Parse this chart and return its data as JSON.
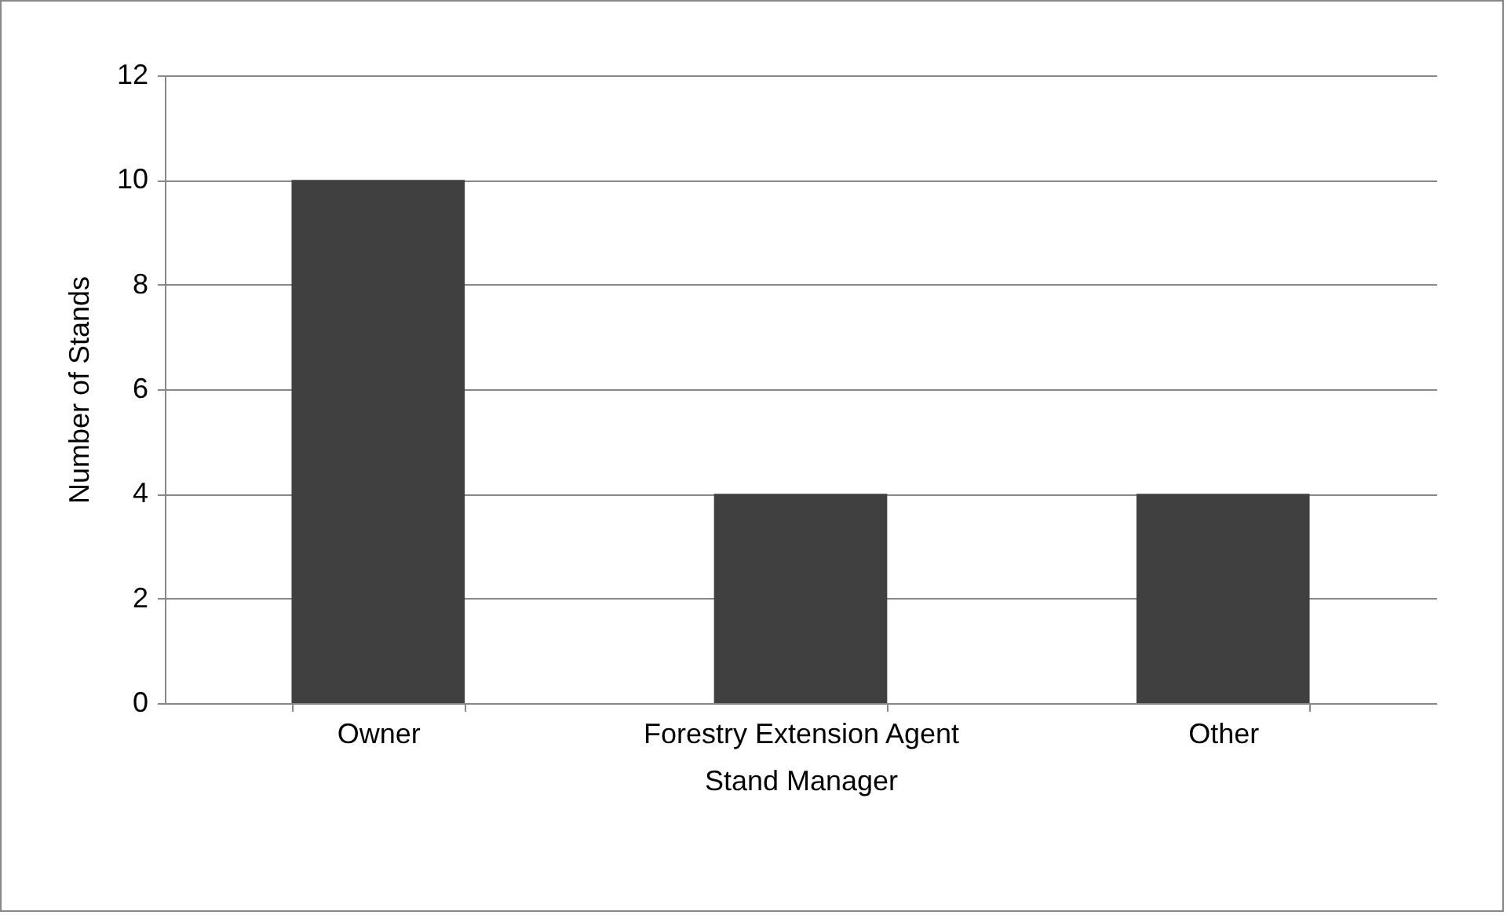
{
  "chart_data": {
    "type": "bar",
    "xlabel": "Stand Manager",
    "ylabel": "Number of Stands",
    "categories": [
      "Owner",
      "Forestry Extension Agent",
      "Other"
    ],
    "values": [
      10,
      4,
      4
    ],
    "color": "#404040",
    "ylim": [
      0,
      12
    ],
    "yticks": [
      0,
      2,
      4,
      6,
      8,
      10,
      12
    ],
    "grid": "y"
  }
}
